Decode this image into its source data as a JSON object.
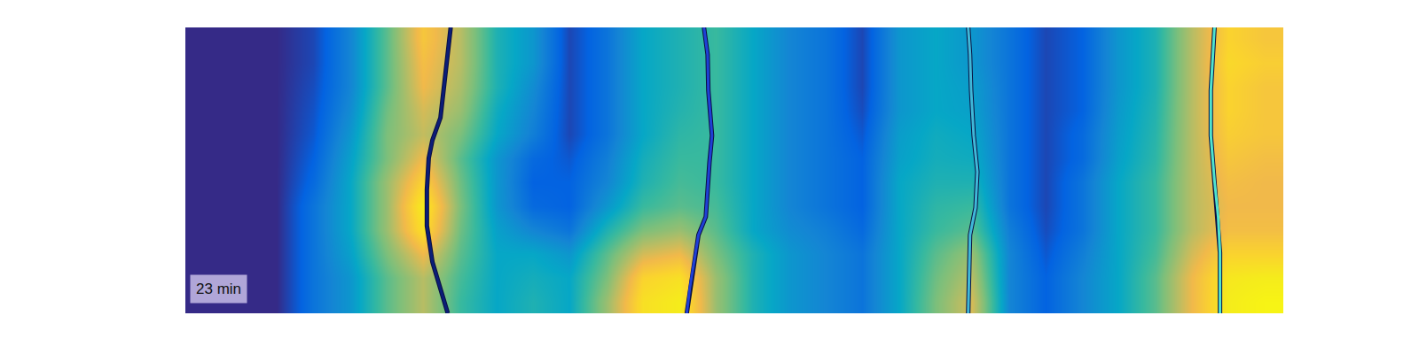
{
  "chart_data": {
    "type": "heatmap",
    "x": [
      0,
      1,
      2,
      3,
      4,
      5,
      6,
      7,
      8,
      9,
      10,
      11,
      12,
      13,
      14,
      15,
      16,
      17,
      18,
      19,
      20,
      21,
      22,
      23,
      24,
      25,
      26,
      27,
      28,
      29
    ],
    "y": [
      0,
      1,
      2,
      3,
      4,
      5,
      6,
      7,
      8,
      9,
      10,
      11
    ],
    "cells": [
      [
        0,
        0,
        0,
        0.15,
        0.25,
        0.45,
        0.6,
        0.4,
        0.3,
        0.35,
        0.3,
        0.55,
        0.85,
        0.9,
        0.55,
        0.35,
        0.25,
        0.2,
        0.15,
        0.3,
        0.5,
        0.65,
        0.2,
        0.1,
        0.2,
        0.3,
        0.45,
        0.7,
        0.9,
        0.95
      ],
      [
        0,
        0,
        0,
        0.15,
        0.25,
        0.45,
        0.6,
        0.42,
        0.3,
        0.33,
        0.3,
        0.5,
        0.8,
        0.85,
        0.55,
        0.35,
        0.25,
        0.2,
        0.15,
        0.3,
        0.48,
        0.6,
        0.2,
        0.1,
        0.2,
        0.3,
        0.45,
        0.7,
        0.88,
        0.9
      ],
      [
        0,
        0,
        0,
        0.15,
        0.28,
        0.5,
        0.7,
        0.45,
        0.3,
        0.3,
        0.25,
        0.45,
        0.65,
        0.7,
        0.5,
        0.35,
        0.25,
        0.2,
        0.15,
        0.3,
        0.45,
        0.55,
        0.2,
        0.08,
        0.18,
        0.3,
        0.42,
        0.65,
        0.8,
        0.8
      ],
      [
        0,
        0,
        0,
        0.15,
        0.3,
        0.55,
        0.85,
        0.48,
        0.28,
        0.2,
        0.15,
        0.35,
        0.5,
        0.55,
        0.45,
        0.3,
        0.22,
        0.18,
        0.12,
        0.3,
        0.4,
        0.45,
        0.18,
        0.06,
        0.15,
        0.3,
        0.4,
        0.6,
        0.72,
        0.72
      ],
      [
        0,
        0,
        0,
        0.15,
        0.3,
        0.55,
        0.9,
        0.5,
        0.25,
        0.12,
        0.1,
        0.25,
        0.4,
        0.45,
        0.42,
        0.3,
        0.2,
        0.15,
        0.1,
        0.3,
        0.38,
        0.4,
        0.15,
        0.05,
        0.15,
        0.3,
        0.4,
        0.6,
        0.7,
        0.7
      ],
      [
        0,
        0,
        0,
        0.12,
        0.3,
        0.55,
        0.8,
        0.48,
        0.25,
        0.1,
        0.1,
        0.2,
        0.35,
        0.42,
        0.4,
        0.3,
        0.2,
        0.15,
        0.1,
        0.3,
        0.35,
        0.35,
        0.15,
        0.05,
        0.15,
        0.3,
        0.4,
        0.6,
        0.72,
        0.7
      ],
      [
        0,
        0,
        0,
        0.1,
        0.28,
        0.5,
        0.7,
        0.45,
        0.25,
        0.12,
        0.08,
        0.18,
        0.33,
        0.4,
        0.4,
        0.3,
        0.2,
        0.15,
        0.1,
        0.28,
        0.33,
        0.32,
        0.15,
        0.05,
        0.12,
        0.28,
        0.38,
        0.6,
        0.75,
        0.72
      ],
      [
        0,
        0,
        0,
        0.08,
        0.25,
        0.5,
        0.62,
        0.5,
        0.3,
        0.18,
        0.05,
        0.15,
        0.3,
        0.38,
        0.4,
        0.3,
        0.2,
        0.15,
        0.08,
        0.27,
        0.32,
        0.3,
        0.15,
        0.05,
        0.12,
        0.27,
        0.37,
        0.6,
        0.78,
        0.75
      ],
      [
        0,
        0,
        0,
        0.07,
        0.22,
        0.48,
        0.65,
        0.55,
        0.32,
        0.2,
        0.05,
        0.15,
        0.3,
        0.36,
        0.4,
        0.3,
        0.2,
        0.15,
        0.06,
        0.25,
        0.3,
        0.28,
        0.15,
        0.05,
        0.1,
        0.26,
        0.36,
        0.6,
        0.8,
        0.75
      ],
      [
        0,
        0,
        0,
        0.06,
        0.2,
        0.45,
        0.7,
        0.58,
        0.35,
        0.22,
        0.05,
        0.15,
        0.3,
        0.35,
        0.4,
        0.3,
        0.2,
        0.15,
        0.05,
        0.25,
        0.3,
        0.27,
        0.15,
        0.05,
        0.1,
        0.25,
        0.35,
        0.6,
        0.8,
        0.75
      ],
      [
        0,
        0,
        0,
        0.05,
        0.2,
        0.45,
        0.72,
        0.6,
        0.35,
        0.25,
        0.05,
        0.15,
        0.3,
        0.35,
        0.4,
        0.3,
        0.2,
        0.15,
        0.05,
        0.25,
        0.3,
        0.25,
        0.15,
        0.05,
        0.1,
        0.25,
        0.35,
        0.6,
        0.82,
        0.78
      ],
      [
        0,
        0,
        0,
        0.05,
        0.2,
        0.45,
        0.75,
        0.6,
        0.35,
        0.25,
        0.05,
        0.15,
        0.3,
        0.35,
        0.4,
        0.3,
        0.2,
        0.15,
        0.05,
        0.25,
        0.3,
        0.25,
        0.15,
        0.05,
        0.1,
        0.25,
        0.35,
        0.6,
        0.8,
        0.75
      ]
    ],
    "color_range": [
      0,
      1
    ],
    "xlim": [
      -0.5,
      29.5
    ],
    "ylim": [
      -0.5,
      11.5
    ],
    "tick_labels": false,
    "series": [
      {
        "type": "line",
        "color": "#0b1d78",
        "x": [
          6.75,
          6.67,
          6.55,
          6.47,
          6.25,
          6.15,
          6.1,
          6.1,
          6.25,
          6.47,
          6.67
        ],
        "y": [
          11.5,
          10.36,
          8.85,
          7.71,
          6.77,
          6.01,
          4.69,
          3.17,
          1.66,
          0.52,
          -0.5
        ]
      },
      {
        "type": "line",
        "color": "#1f3fd6",
        "x": [
          13.67,
          13.77,
          13.79,
          13.89,
          13.82,
          13.77,
          13.72,
          13.52,
          13.4,
          13.28,
          13.2
        ],
        "y": [
          11.5,
          10.36,
          8.85,
          6.96,
          5.82,
          4.69,
          3.55,
          2.79,
          1.66,
          0.52,
          -0.5
        ]
      },
      {
        "type": "line",
        "color": "#3fb8d8",
        "x": [
          20.89,
          20.94,
          20.97,
          21.04,
          21.14,
          21.09,
          20.94,
          20.92,
          20.89
        ],
        "y": [
          11.5,
          10.36,
          8.85,
          6.96,
          5.44,
          3.93,
          2.79,
          1.28,
          -0.5
        ]
      },
      {
        "type": "line",
        "color": "#4fe3cf",
        "x": [
          27.62,
          27.57,
          27.52,
          27.52,
          27.62,
          27.72,
          27.77,
          27.77
        ],
        "y": [
          11.5,
          10.36,
          8.85,
          6.96,
          5.06,
          3.55,
          2.04,
          -0.5
        ]
      }
    ],
    "annotations": [
      {
        "text": "23 min"
      }
    ]
  }
}
